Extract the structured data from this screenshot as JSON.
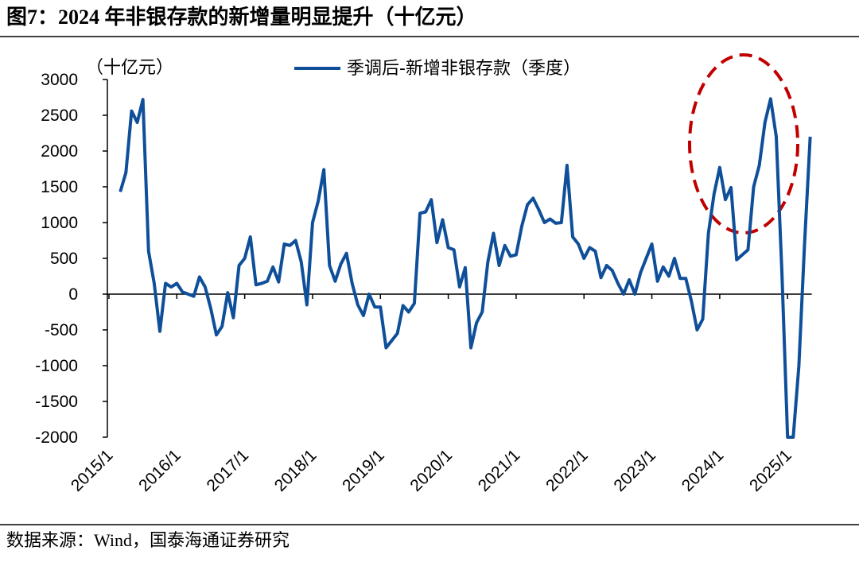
{
  "chart_data": {
    "type": "line",
    "title": "图7：2024 年非银存款的新增量明显提升（十亿元）",
    "unit_label": "（十亿元）",
    "source": "数据来源：Wind，国泰海通证券研究",
    "categories": [
      "2015/1",
      null,
      null,
      null,
      null,
      null,
      null,
      null,
      null,
      null,
      null,
      null,
      "2016/1",
      null,
      null,
      null,
      null,
      null,
      null,
      null,
      null,
      null,
      null,
      null,
      "2017/1",
      null,
      null,
      null,
      null,
      null,
      null,
      null,
      null,
      null,
      null,
      null,
      "2018/1",
      null,
      null,
      null,
      null,
      null,
      null,
      null,
      null,
      null,
      null,
      null,
      "2019/1",
      null,
      null,
      null,
      null,
      null,
      null,
      null,
      null,
      null,
      null,
      null,
      "2020/1",
      null,
      null,
      null,
      null,
      null,
      null,
      null,
      null,
      null,
      null,
      null,
      "2021/1",
      null,
      null,
      null,
      null,
      null,
      null,
      null,
      null,
      null,
      null,
      null,
      "2022/1",
      null,
      null,
      null,
      null,
      null,
      null,
      null,
      null,
      null,
      null,
      null,
      "2023/1",
      null,
      null,
      null,
      null,
      null,
      null,
      null,
      null,
      null,
      null,
      null,
      "2024/1",
      null,
      null,
      null,
      null,
      null,
      null,
      null,
      null,
      null,
      null,
      null,
      "2025/1",
      null,
      null,
      null,
      null
    ],
    "series": [
      {
        "name": "季调后-新增非银存款（季度）",
        "color": "#0f4f9a",
        "values": [
          null,
          null,
          1430,
          1700,
          2560,
          2400,
          2720,
          600,
          150,
          -520,
          150,
          100,
          150,
          30,
          0,
          -30,
          240,
          100,
          -200,
          -570,
          -450,
          20,
          -330,
          400,
          500,
          800,
          130,
          150,
          180,
          380,
          170,
          700,
          680,
          750,
          450,
          -150,
          1000,
          1300,
          1740,
          400,
          180,
          420,
          570,
          150,
          -150,
          -300,
          0,
          -180,
          -180,
          -750,
          -650,
          -550,
          -160,
          -250,
          -130,
          1130,
          1150,
          1320,
          720,
          1040,
          650,
          620,
          100,
          370,
          -750,
          -400,
          -250,
          450,
          850,
          400,
          680,
          530,
          550,
          950,
          1250,
          1340,
          1180,
          1000,
          1050,
          990,
          1000,
          1800,
          800,
          700,
          500,
          650,
          600,
          230,
          400,
          330,
          150,
          0,
          200,
          0,
          300,
          500,
          700,
          180,
          380,
          250,
          500,
          220,
          220,
          -100,
          -500,
          -350,
          850,
          1400,
          1770,
          1320,
          1490,
          480,
          550,
          620,
          1500,
          1800,
          2400,
          2730,
          2200,
          300,
          -2000,
          -2000,
          -1000,
          700,
          2200
        ]
      }
    ],
    "ylim": [
      -2000,
      3000
    ],
    "yticks": [
      -2000,
      -1500,
      -1000,
      -500,
      0,
      500,
      1000,
      1500,
      2000,
      2500,
      3000
    ],
    "legend": "top"
  }
}
